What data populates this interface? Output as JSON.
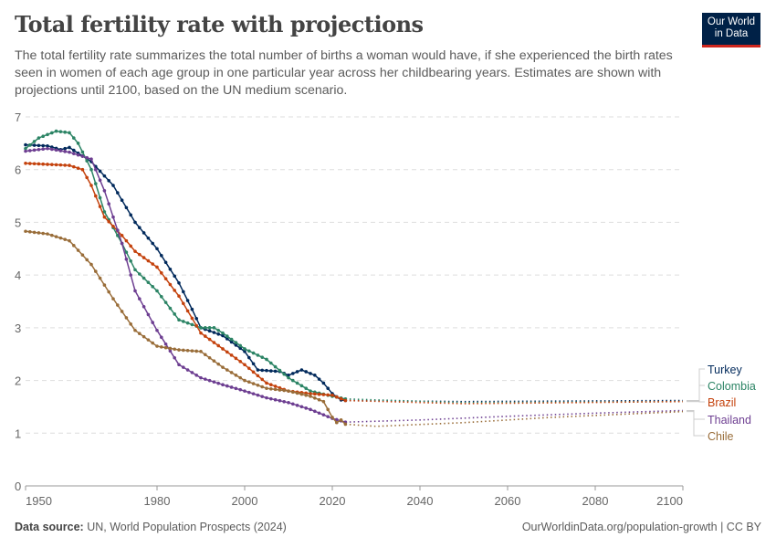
{
  "header": {
    "title": "Total fertility rate with projections",
    "subtitle": "The total fertility rate summarizes the total number of births a woman would have, if she experienced the birth rates seen in women of each age group in one particular year across her childbearing years. Estimates are shown with projections until 2100, based on the UN medium scenario.",
    "logo": "Our World in Data"
  },
  "footer": {
    "source_label": "Data source:",
    "source": "UN, World Population Prospects (2024)",
    "credit": "OurWorldinData.org/population-growth | CC BY"
  },
  "chart_data": {
    "type": "line",
    "xlim": [
      1950,
      2100
    ],
    "ylim": [
      0,
      7
    ],
    "x_ticks": [
      1950,
      1980,
      2000,
      2020,
      2040,
      2060,
      2080,
      2100
    ],
    "y_ticks": [
      0,
      1,
      2,
      3,
      4,
      5,
      6,
      7
    ],
    "grid": "horizontal dashed",
    "legend": "right",
    "projection_start": 2023,
    "series": [
      {
        "name": "Turkey",
        "color": "#00295b",
        "points": [
          [
            1950,
            6.47
          ],
          [
            1955,
            6.45
          ],
          [
            1958,
            6.38
          ],
          [
            1960,
            6.42
          ],
          [
            1965,
            6.15
          ],
          [
            1970,
            5.7
          ],
          [
            1975,
            5.0
          ],
          [
            1980,
            4.5
          ],
          [
            1985,
            3.85
          ],
          [
            1988,
            3.35
          ],
          [
            1990,
            3.0
          ],
          [
            1995,
            2.85
          ],
          [
            2000,
            2.55
          ],
          [
            2003,
            2.2
          ],
          [
            2008,
            2.17
          ],
          [
            2010,
            2.1
          ],
          [
            2013,
            2.2
          ],
          [
            2016,
            2.1
          ],
          [
            2018,
            1.95
          ],
          [
            2020,
            1.75
          ],
          [
            2022,
            1.63
          ],
          [
            2023,
            1.62
          ]
        ],
        "projection": [
          [
            2023,
            1.62
          ],
          [
            2050,
            1.6
          ],
          [
            2100,
            1.62
          ]
        ]
      },
      {
        "name": "Colombia",
        "color": "#2c8465",
        "points": [
          [
            1950,
            6.4
          ],
          [
            1953,
            6.6
          ],
          [
            1957,
            6.73
          ],
          [
            1960,
            6.7
          ],
          [
            1962,
            6.5
          ],
          [
            1965,
            6.0
          ],
          [
            1968,
            5.2
          ],
          [
            1972,
            4.6
          ],
          [
            1975,
            4.1
          ],
          [
            1980,
            3.7
          ],
          [
            1985,
            3.15
          ],
          [
            1990,
            3.0
          ],
          [
            1993,
            3.0
          ],
          [
            1995,
            2.9
          ],
          [
            2000,
            2.6
          ],
          [
            2005,
            2.4
          ],
          [
            2010,
            2.05
          ],
          [
            2015,
            1.8
          ],
          [
            2020,
            1.7
          ],
          [
            2023,
            1.65
          ]
        ],
        "projection": [
          [
            2023,
            1.65
          ],
          [
            2050,
            1.58
          ],
          [
            2100,
            1.6
          ]
        ]
      },
      {
        "name": "Brazil",
        "color": "#c4420d",
        "points": [
          [
            1950,
            6.12
          ],
          [
            1960,
            6.08
          ],
          [
            1963,
            6.0
          ],
          [
            1965,
            5.7
          ],
          [
            1968,
            5.1
          ],
          [
            1972,
            4.75
          ],
          [
            1975,
            4.45
          ],
          [
            1980,
            4.15
          ],
          [
            1985,
            3.6
          ],
          [
            1990,
            2.9
          ],
          [
            1995,
            2.6
          ],
          [
            2000,
            2.3
          ],
          [
            2005,
            1.95
          ],
          [
            2010,
            1.8
          ],
          [
            2015,
            1.75
          ],
          [
            2020,
            1.72
          ],
          [
            2023,
            1.62
          ]
        ],
        "projection": [
          [
            2023,
            1.62
          ],
          [
            2050,
            1.56
          ],
          [
            2100,
            1.6
          ]
        ]
      },
      {
        "name": "Thailand",
        "color": "#6d3e91",
        "points": [
          [
            1950,
            6.35
          ],
          [
            1955,
            6.4
          ],
          [
            1960,
            6.33
          ],
          [
            1965,
            6.2
          ],
          [
            1968,
            5.6
          ],
          [
            1972,
            4.6
          ],
          [
            1975,
            3.7
          ],
          [
            1980,
            2.95
          ],
          [
            1985,
            2.3
          ],
          [
            1990,
            2.05
          ],
          [
            1995,
            1.92
          ],
          [
            2000,
            1.8
          ],
          [
            2005,
            1.67
          ],
          [
            2010,
            1.58
          ],
          [
            2015,
            1.45
          ],
          [
            2020,
            1.28
          ],
          [
            2023,
            1.21
          ]
        ],
        "projection": [
          [
            2023,
            1.21
          ],
          [
            2040,
            1.25
          ],
          [
            2060,
            1.32
          ],
          [
            2080,
            1.38
          ],
          [
            2100,
            1.43
          ]
        ]
      },
      {
        "name": "Chile",
        "color": "#996d39",
        "points": [
          [
            1950,
            4.83
          ],
          [
            1955,
            4.78
          ],
          [
            1960,
            4.65
          ],
          [
            1965,
            4.2
          ],
          [
            1970,
            3.55
          ],
          [
            1975,
            2.95
          ],
          [
            1980,
            2.65
          ],
          [
            1985,
            2.58
          ],
          [
            1990,
            2.55
          ],
          [
            1995,
            2.25
          ],
          [
            2000,
            2.0
          ],
          [
            2005,
            1.85
          ],
          [
            2010,
            1.8
          ],
          [
            2015,
            1.7
          ],
          [
            2018,
            1.6
          ],
          [
            2020,
            1.3
          ],
          [
            2021,
            1.2
          ],
          [
            2022,
            1.25
          ],
          [
            2023,
            1.17
          ]
        ],
        "projection": [
          [
            2023,
            1.17
          ],
          [
            2030,
            1.13
          ],
          [
            2050,
            1.2
          ],
          [
            2070,
            1.3
          ],
          [
            2100,
            1.41
          ]
        ]
      }
    ]
  }
}
